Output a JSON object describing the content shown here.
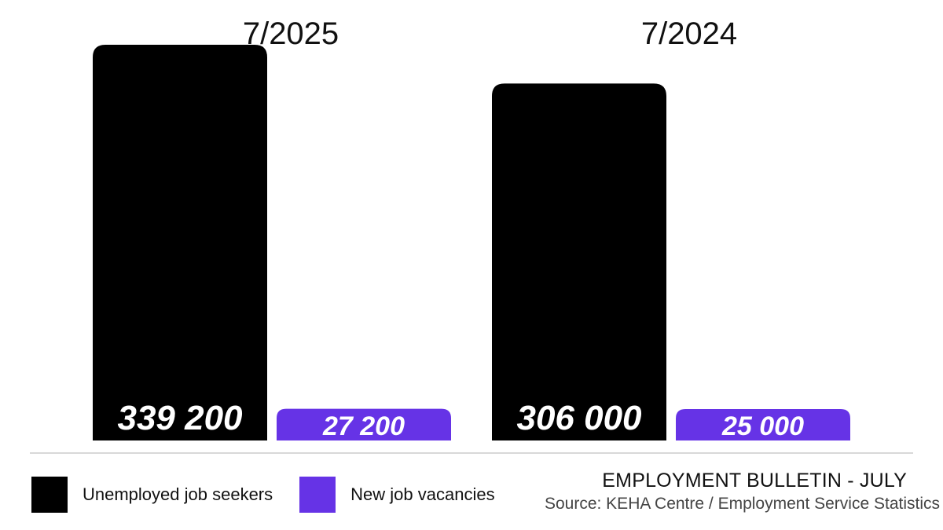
{
  "chart_data": {
    "type": "bar",
    "categories": [
      "7/2025",
      "7/2024"
    ],
    "series": [
      {
        "name": "Unemployed job seekers",
        "values": [
          339200,
          306000
        ],
        "labels": [
          "339 200",
          "306 000"
        ],
        "color": "#000000"
      },
      {
        "name": "New job vacancies",
        "values": [
          27200,
          25000
        ],
        "labels": [
          "27 200",
          "25 000"
        ],
        "color": "#6633e6"
      }
    ],
    "title": "",
    "xlabel": "",
    "ylabel": "",
    "ylim": [
      0,
      339200
    ],
    "grid": false,
    "legend_position": "bottom-left"
  },
  "footer": {
    "bulletin": "EMPLOYMENT BULLETIN - JULY",
    "source": "Source: KEHA Centre / Employment Service Statistics"
  },
  "colors": {
    "seekers": "#000000",
    "vacancies": "#6633e6",
    "baseline": "#cccccc"
  }
}
